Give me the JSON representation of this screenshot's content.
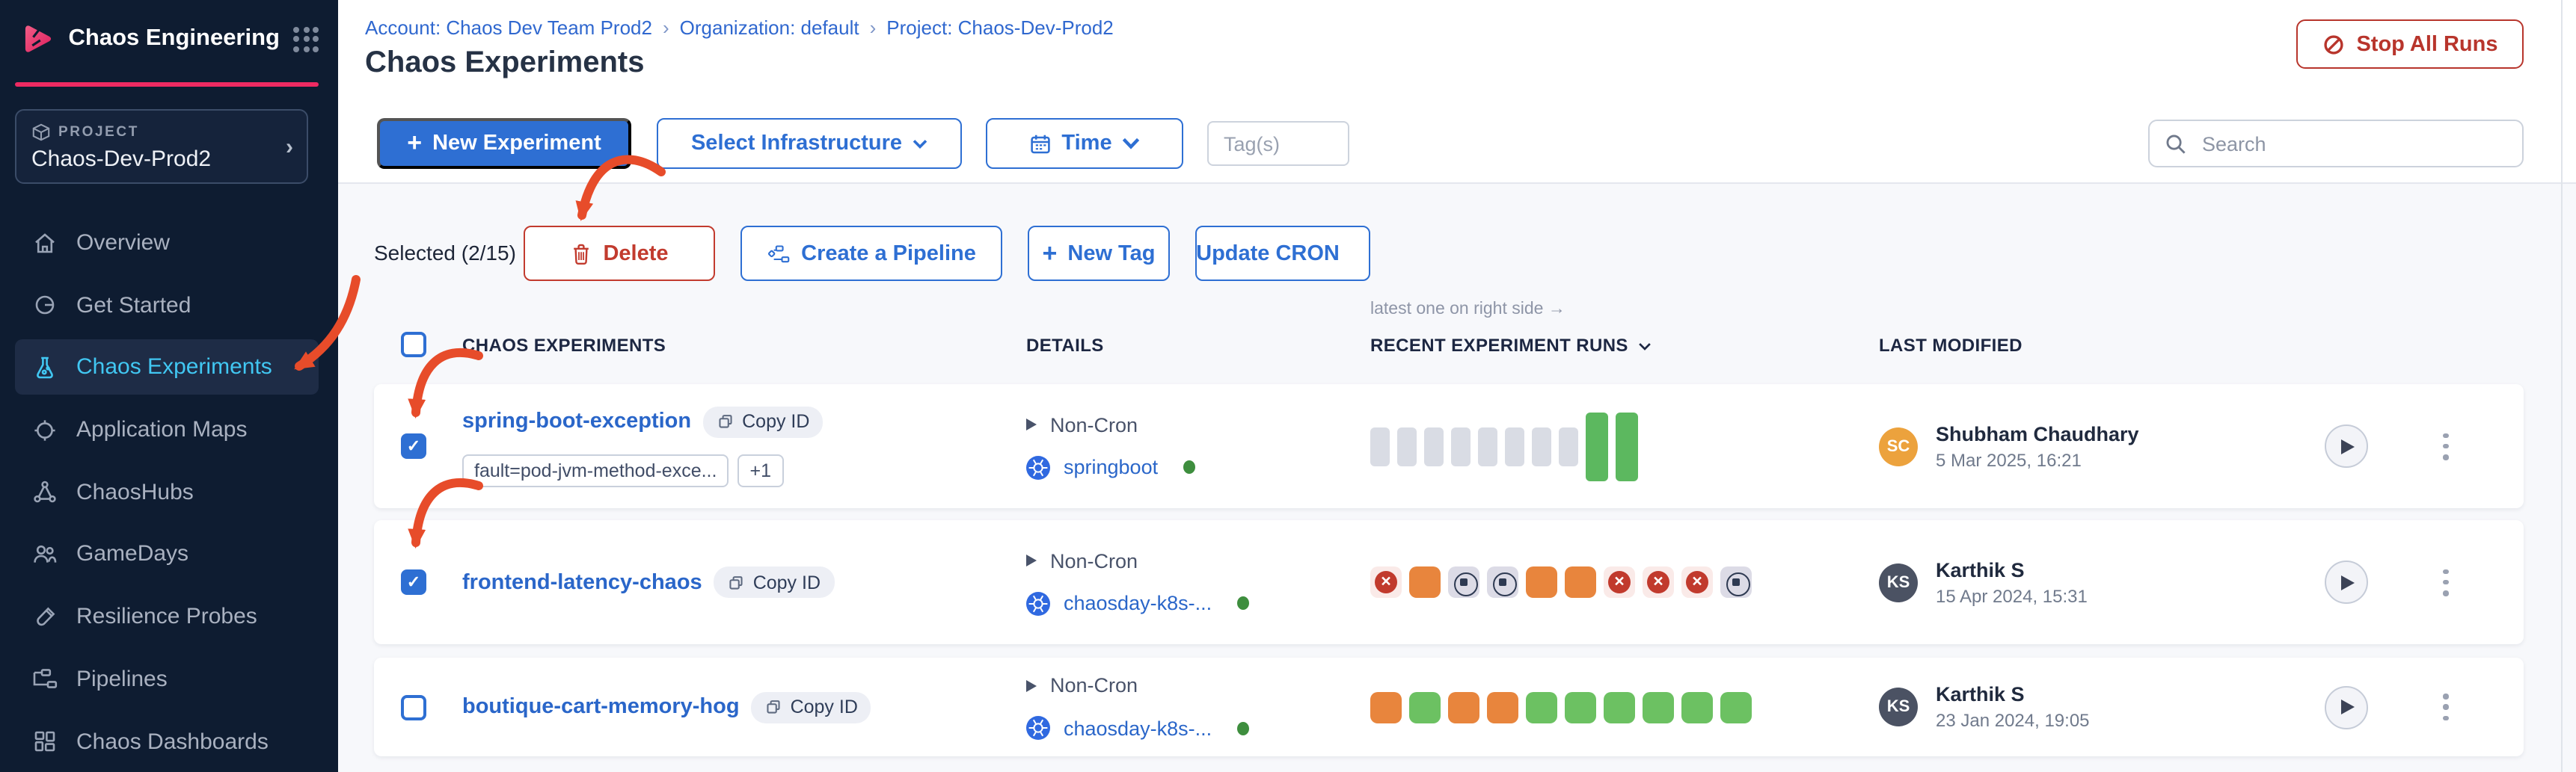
{
  "sidebar": {
    "app_title": "Chaos Engineering",
    "project_label": "PROJECT",
    "project_name": "Chaos-Dev-Prod2",
    "items": [
      {
        "label": "Overview"
      },
      {
        "label": "Get Started"
      },
      {
        "label": "Chaos Experiments",
        "active": true
      },
      {
        "label": "Application Maps"
      },
      {
        "label": "ChaosHubs"
      },
      {
        "label": "GameDays"
      },
      {
        "label": "Resilience Probes"
      },
      {
        "label": "Pipelines"
      },
      {
        "label": "Chaos Dashboards"
      }
    ]
  },
  "header": {
    "breadcrumb": {
      "account": "Account: Chaos Dev Team Prod2",
      "separator": "›",
      "organization": "Organization: default",
      "project": "Project: Chaos-Dev-Prod2"
    },
    "title": "Chaos Experiments",
    "stop_all_runs_label": "Stop All Runs"
  },
  "toolbar": {
    "new_experiment_label": "New Experiment",
    "select_infrastructure_label": "Select Infrastructure",
    "time_label": "Time",
    "tags_placeholder": "Tag(s)",
    "search_placeholder": "Search"
  },
  "bulk_actions": {
    "selected_label": "Selected (2/15)",
    "delete_label": "Delete",
    "create_pipeline_label": "Create a Pipeline",
    "new_tag_label": "New Tag",
    "update_cron_label": "Update CRON"
  },
  "table": {
    "runs_note": "latest one on right side →",
    "columns": {
      "experiments": "CHAOS EXPERIMENTS",
      "details": "DETAILS",
      "runs": "RECENT EXPERIMENT RUNS",
      "last_modified": "LAST MODIFIED"
    },
    "rows": [
      {
        "name": "spring-boot-exception",
        "copy_id_label": "Copy ID",
        "checked": true,
        "tags": [
          "fault=pod-jvm-method-exce...",
          "+1"
        ],
        "cron": "Non-Cron",
        "infrastructure": "springboot",
        "runs": [
          "empty",
          "empty",
          "empty",
          "empty",
          "empty",
          "empty",
          "empty",
          "empty",
          "passed-tall",
          "passed-tall"
        ],
        "modified_by": {
          "initials": "SC",
          "name": "Shubham Chaudhary",
          "date": "5 Mar 2025, 16:21",
          "color": "#eca23d"
        }
      },
      {
        "name": "frontend-latency-chaos",
        "copy_id_label": "Copy ID",
        "checked": true,
        "tags": [],
        "cron": "Non-Cron",
        "infrastructure": "chaosday-k8s-...",
        "runs": [
          "failed",
          "running",
          "stopped",
          "stopped",
          "running",
          "running",
          "failed",
          "failed",
          "failed",
          "stopped"
        ],
        "modified_by": {
          "initials": "KS",
          "name": "Karthik S",
          "date": "15 Apr 2024, 15:31",
          "color": "#4b5263"
        }
      },
      {
        "name": "boutique-cart-memory-hog",
        "copy_id_label": "Copy ID",
        "checked": false,
        "tags": [],
        "cron": "Non-Cron",
        "infrastructure": "chaosday-k8s-...",
        "runs": [
          "running",
          "passed",
          "running",
          "running",
          "passed",
          "passed",
          "passed",
          "passed",
          "passed",
          "passed"
        ],
        "modified_by": {
          "initials": "KS",
          "name": "Karthik S",
          "date": "23 Jan 2024, 19:05",
          "color": "#4b5263"
        }
      }
    ]
  },
  "colors": {
    "sidebar_bg": "#0e1c31",
    "accent_pink": "#ee2a62",
    "primary_blue": "#2e6fd3",
    "link_blue": "#2a66c9",
    "active_nav_blue": "#41c7f2",
    "danger_red": "#b8352c",
    "annotation_red": "#e74c2a",
    "run_green": "#6cc162",
    "run_orange": "#e8853d",
    "run_gray": "#d9dce4"
  }
}
